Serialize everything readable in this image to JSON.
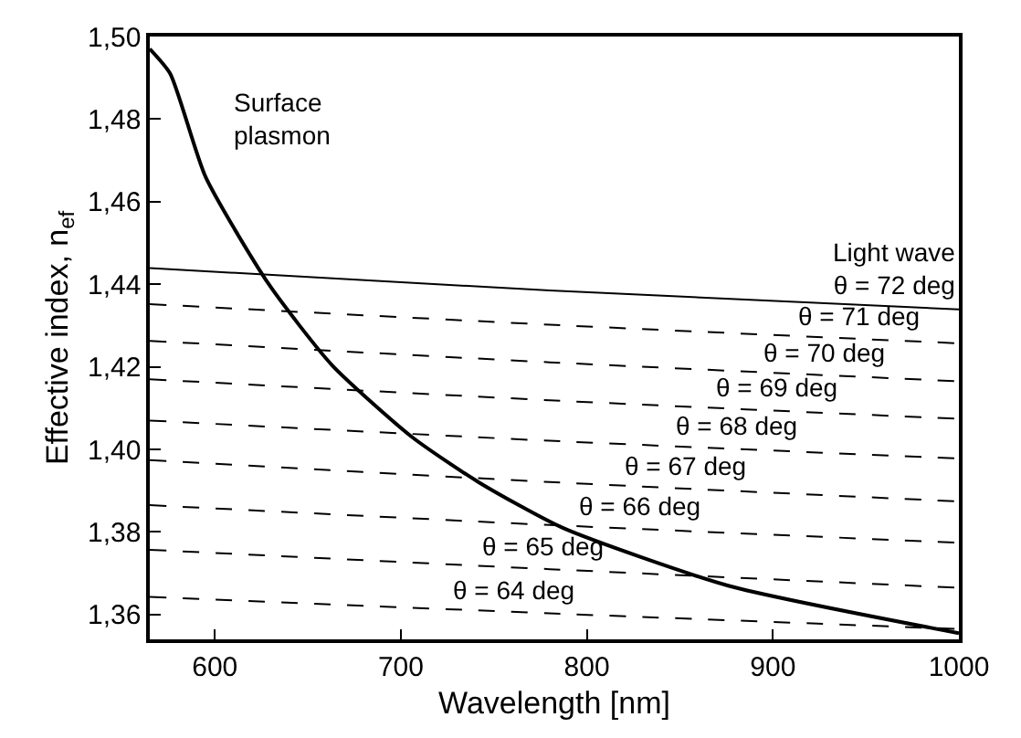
{
  "chart_data": {
    "type": "line",
    "xlabel": "Wavelength [nm]",
    "ylabel": "Effective index, n$_{ef}$",
    "xlim": [
      565,
      1000
    ],
    "xticks": [
      600,
      700,
      800,
      900,
      1000
    ],
    "ylim": [
      1.354,
      1.5
    ],
    "yticks": [
      {
        "value": 1.36,
        "label": "1,36"
      },
      {
        "value": 1.38,
        "label": "1,38"
      },
      {
        "value": 1.4,
        "label": "1,40"
      },
      {
        "value": 1.42,
        "label": "1,42"
      },
      {
        "value": 1.44,
        "label": "1,44"
      },
      {
        "value": 1.46,
        "label": "1,46"
      },
      {
        "value": 1.48,
        "label": "1,48"
      },
      {
        "value": 1.5,
        "label": "1,50"
      }
    ],
    "grid": false,
    "series": [
      {
        "color": "#000000",
        "line_style": "solid",
        "x": [
          565,
          576,
          595,
          629,
          663,
          706,
          742,
          787,
          876,
          1000
        ],
        "values": [
          1.497,
          1.491,
          1.466,
          1.44,
          1.4204,
          1.403,
          1.392,
          1.381,
          1.367,
          1.3555
        ]
      },
      {
        "color": "#000000",
        "line_style": "solid",
        "x": [
          565,
          780,
          1000
        ],
        "values": [
          1.4439,
          1.4385,
          1.4339
        ]
      },
      {
        "color": "#000000",
        "line_style": "dashed",
        "x": [
          565,
          780,
          1000
        ],
        "values": [
          1.4352,
          1.4302,
          1.4257
        ]
      },
      {
        "color": "#000000",
        "line_style": "dashed",
        "x": [
          565,
          780,
          1000
        ],
        "values": [
          1.4263,
          1.4211,
          1.4165
        ]
      },
      {
        "color": "#000000",
        "line_style": "dashed",
        "x": [
          565,
          780,
          1000
        ],
        "values": [
          1.417,
          1.4119,
          1.4074
        ]
      },
      {
        "color": "#000000",
        "line_style": "dashed",
        "x": [
          565,
          780,
          1000
        ],
        "values": [
          1.407,
          1.4021,
          1.3978
        ]
      },
      {
        "color": "#000000",
        "line_style": "dashed",
        "x": [
          565,
          780,
          1000
        ],
        "values": [
          1.3974,
          1.3921,
          1.3874
        ]
      },
      {
        "color": "#000000",
        "line_style": "dashed",
        "x": [
          565,
          780,
          1000
        ],
        "values": [
          1.3865,
          1.3817,
          1.3774
        ]
      },
      {
        "color": "#000000",
        "line_style": "dashed",
        "x": [
          565,
          780,
          1000
        ],
        "values": [
          1.3757,
          1.371,
          1.3665
        ]
      },
      {
        "color": "#000000",
        "line_style": "dashed",
        "x": [
          565,
          780,
          1000
        ],
        "values": [
          1.3643,
          1.3603,
          1.3565
        ]
      }
    ],
    "annotations": [
      "Surface\nplasmon",
      {
        "text": "Light wave\nθ = 72 deg",
        "x": 965,
        "y": 1.4347
      },
      {
        "text": "θ = 71 deg",
        "x": 946,
        "y": 1.4269
      },
      {
        "text": "θ = 70 deg",
        "x": 928,
        "y": 1.4181
      },
      {
        "text": "θ = 69 deg",
        "x": 902,
        "y": 1.4096
      },
      {
        "text": "θ = 68 deg",
        "x": 881,
        "y": 1.4003
      },
      {
        "text": "θ = 67 deg",
        "x": 853,
        "y": 1.3908
      },
      {
        "text": "θ = 66 deg",
        "x": 829,
        "y": 1.381
      },
      {
        "text": "θ = 65 deg",
        "x": 777,
        "y": 1.3712
      },
      {
        "text": "θ = 64 deg",
        "x": 761,
        "y": 1.3608
      }
    ]
  }
}
